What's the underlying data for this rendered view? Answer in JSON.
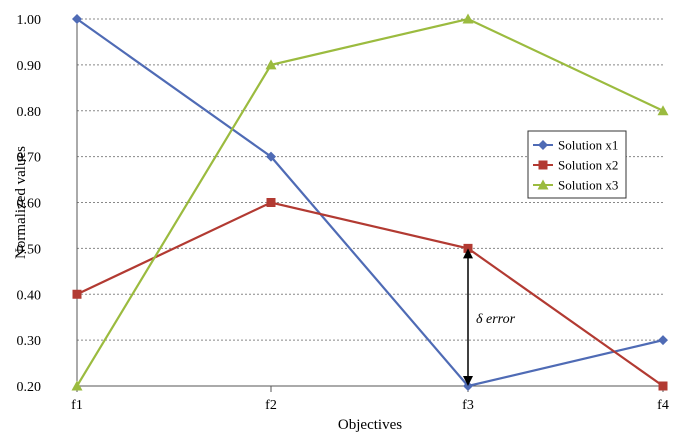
{
  "chart_data": {
    "type": "line",
    "title": "",
    "xlabel": "Objectives",
    "ylabel": "Normalized values",
    "categories": [
      "f1",
      "f2",
      "f3",
      "f4"
    ],
    "ylim": [
      0.2,
      1.0
    ],
    "yticks": [
      "0.20",
      "0.30",
      "0.40",
      "0.50",
      "0.60",
      "0.70",
      "0.80",
      "0.90",
      "1.00"
    ],
    "grid": true,
    "legend_position": "right",
    "series": [
      {
        "name": "Solution x1",
        "values": [
          1.0,
          0.7,
          0.2,
          0.3
        ],
        "color": "#4f6bb5",
        "marker": "diamond"
      },
      {
        "name": "Solution x2",
        "values": [
          0.4,
          0.6,
          0.5,
          0.2
        ],
        "color": "#b23a32",
        "marker": "square"
      },
      {
        "name": "Solution x3",
        "values": [
          0.2,
          0.9,
          1.0,
          0.8
        ],
        "color": "#9bbb3f",
        "marker": "triangle"
      }
    ],
    "annotation": {
      "text": "δ error",
      "category": "f3",
      "from": 0.2,
      "to": 0.5
    }
  }
}
